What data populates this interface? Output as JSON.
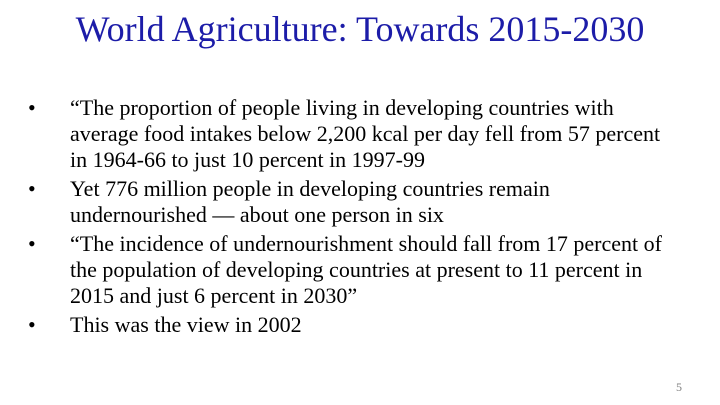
{
  "header": {
    "title": "World Agriculture: Towards 2015-2030"
  },
  "bullets": [
    "“The proportion of people living in developing countries with average food intakes below 2,200 kcal per day fell from 57 percent in 1964-66 to just 10 percent in 1997-99",
    "Yet 776 million people in developing countries remain undernourished — about one person in six",
    "“The incidence of undernourishment should fall from 17 percent of the population of developing countries at present to 11 percent in 2015 and just 6 percent in 2030”",
    "This was the view in 2002"
  ],
  "footer": {
    "slide_number": "5"
  }
}
